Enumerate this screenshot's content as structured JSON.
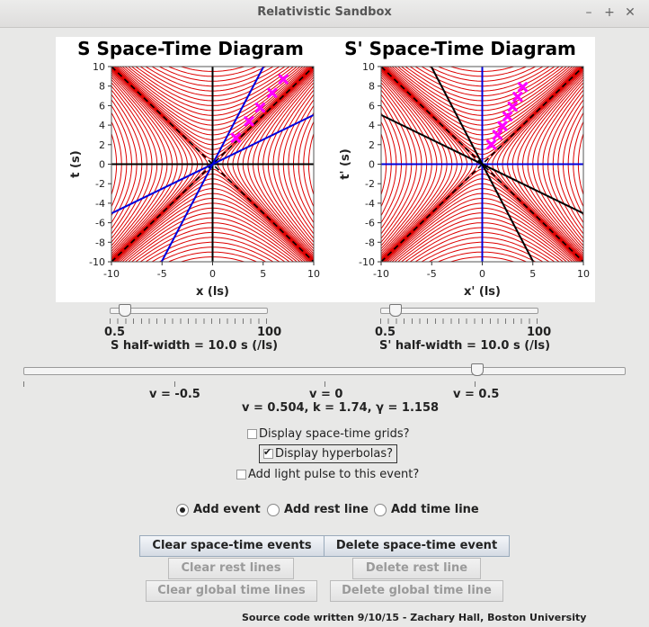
{
  "window": {
    "title": "Relativistic Sandbox"
  },
  "left_plot": {
    "title": "S Space-Time Diagram",
    "xlabel": "x (ls)",
    "ylabel": "t (s)"
  },
  "right_plot": {
    "title": "S' Space-Time Diagram",
    "xlabel": "x' (ls)",
    "ylabel": "t' (s)"
  },
  "chart_data": [
    {
      "type": "scatter",
      "title": "S Space-Time Diagram",
      "xlabel": "x (ls)",
      "ylabel": "t (s)",
      "xlim": [
        -10,
        10
      ],
      "ylim": [
        -10,
        10
      ],
      "xticks": [
        "-10",
        "-5",
        "0",
        "5",
        "10"
      ],
      "yticks": [
        "-10",
        "-8",
        "-6",
        "-4",
        "-2",
        "0",
        "2",
        "4",
        "6",
        "8",
        "10"
      ],
      "events": [
        [
          2.3,
          2.7
        ],
        [
          3.6,
          4.4
        ],
        [
          4.7,
          5.8
        ],
        [
          5.9,
          7.3
        ],
        [
          7.0,
          8.7
        ]
      ],
      "axis_color": "#000000",
      "moving_axis_color": "#0000dd",
      "moving_axis_slope": 0.504
    },
    {
      "type": "scatter",
      "title": "S' Space-Time Diagram",
      "xlabel": "x' (ls)",
      "ylabel": "t' (s)",
      "xlim": [
        -10,
        10
      ],
      "ylim": [
        -10,
        10
      ],
      "xticks": [
        "-10",
        "-5",
        "0",
        "5",
        "10"
      ],
      "yticks": [
        "-10",
        "-8",
        "-6",
        "-4",
        "-2",
        "0",
        "2",
        "4",
        "6",
        "8",
        "10"
      ],
      "events": [
        [
          0.9,
          2.0
        ],
        [
          1.5,
          3.0
        ],
        [
          2.0,
          3.9
        ],
        [
          2.5,
          4.9
        ],
        [
          3.0,
          5.9
        ],
        [
          3.5,
          6.9
        ],
        [
          4.0,
          7.9
        ]
      ],
      "axis_color": "#0000dd",
      "moving_axis_color": "#000000",
      "moving_axis_slope": -0.504
    }
  ],
  "sliders": {
    "s_half": {
      "min": "0.5",
      "max": "100",
      "label": "S half-width = 10.0 s (/ls)",
      "value": 0.1
    },
    "sp_half": {
      "min": "0.5",
      "max": "100",
      "label": "S' half-width = 10.0 s (/ls)",
      "value": 0.1
    },
    "velocity": {
      "label_neg": "v = -0.5",
      "label_zero": "v = 0",
      "label_pos": "v = 0.5",
      "value": 0.504
    }
  },
  "readout": "v =  0.504, k =  1.74, γ =  1.158",
  "options": {
    "grids": {
      "label": "Display space-time grids?",
      "checked": false
    },
    "hyperbolas": {
      "label": "Display hyperbolas?",
      "checked": true
    },
    "light_pulse": {
      "label": "Add light pulse to this event?",
      "checked": false
    }
  },
  "mode": {
    "add_event": "Add event",
    "add_rest_line": "Add rest line",
    "add_time_line": "Add time line",
    "selected": "add_event"
  },
  "buttons": {
    "clear_events": "Clear space-time events",
    "delete_event": "Delete space-time event",
    "clear_rest": "Clear rest lines",
    "delete_rest": "Delete rest line",
    "clear_global": "Clear global time lines",
    "delete_global": "Delete global time line"
  },
  "footer": "Source code written 9/10/15 - Zachary Hall, Boston University",
  "colors": {
    "hyperbola": "#dd0000",
    "event": "#ff00ff",
    "light_cone": "#000000"
  }
}
